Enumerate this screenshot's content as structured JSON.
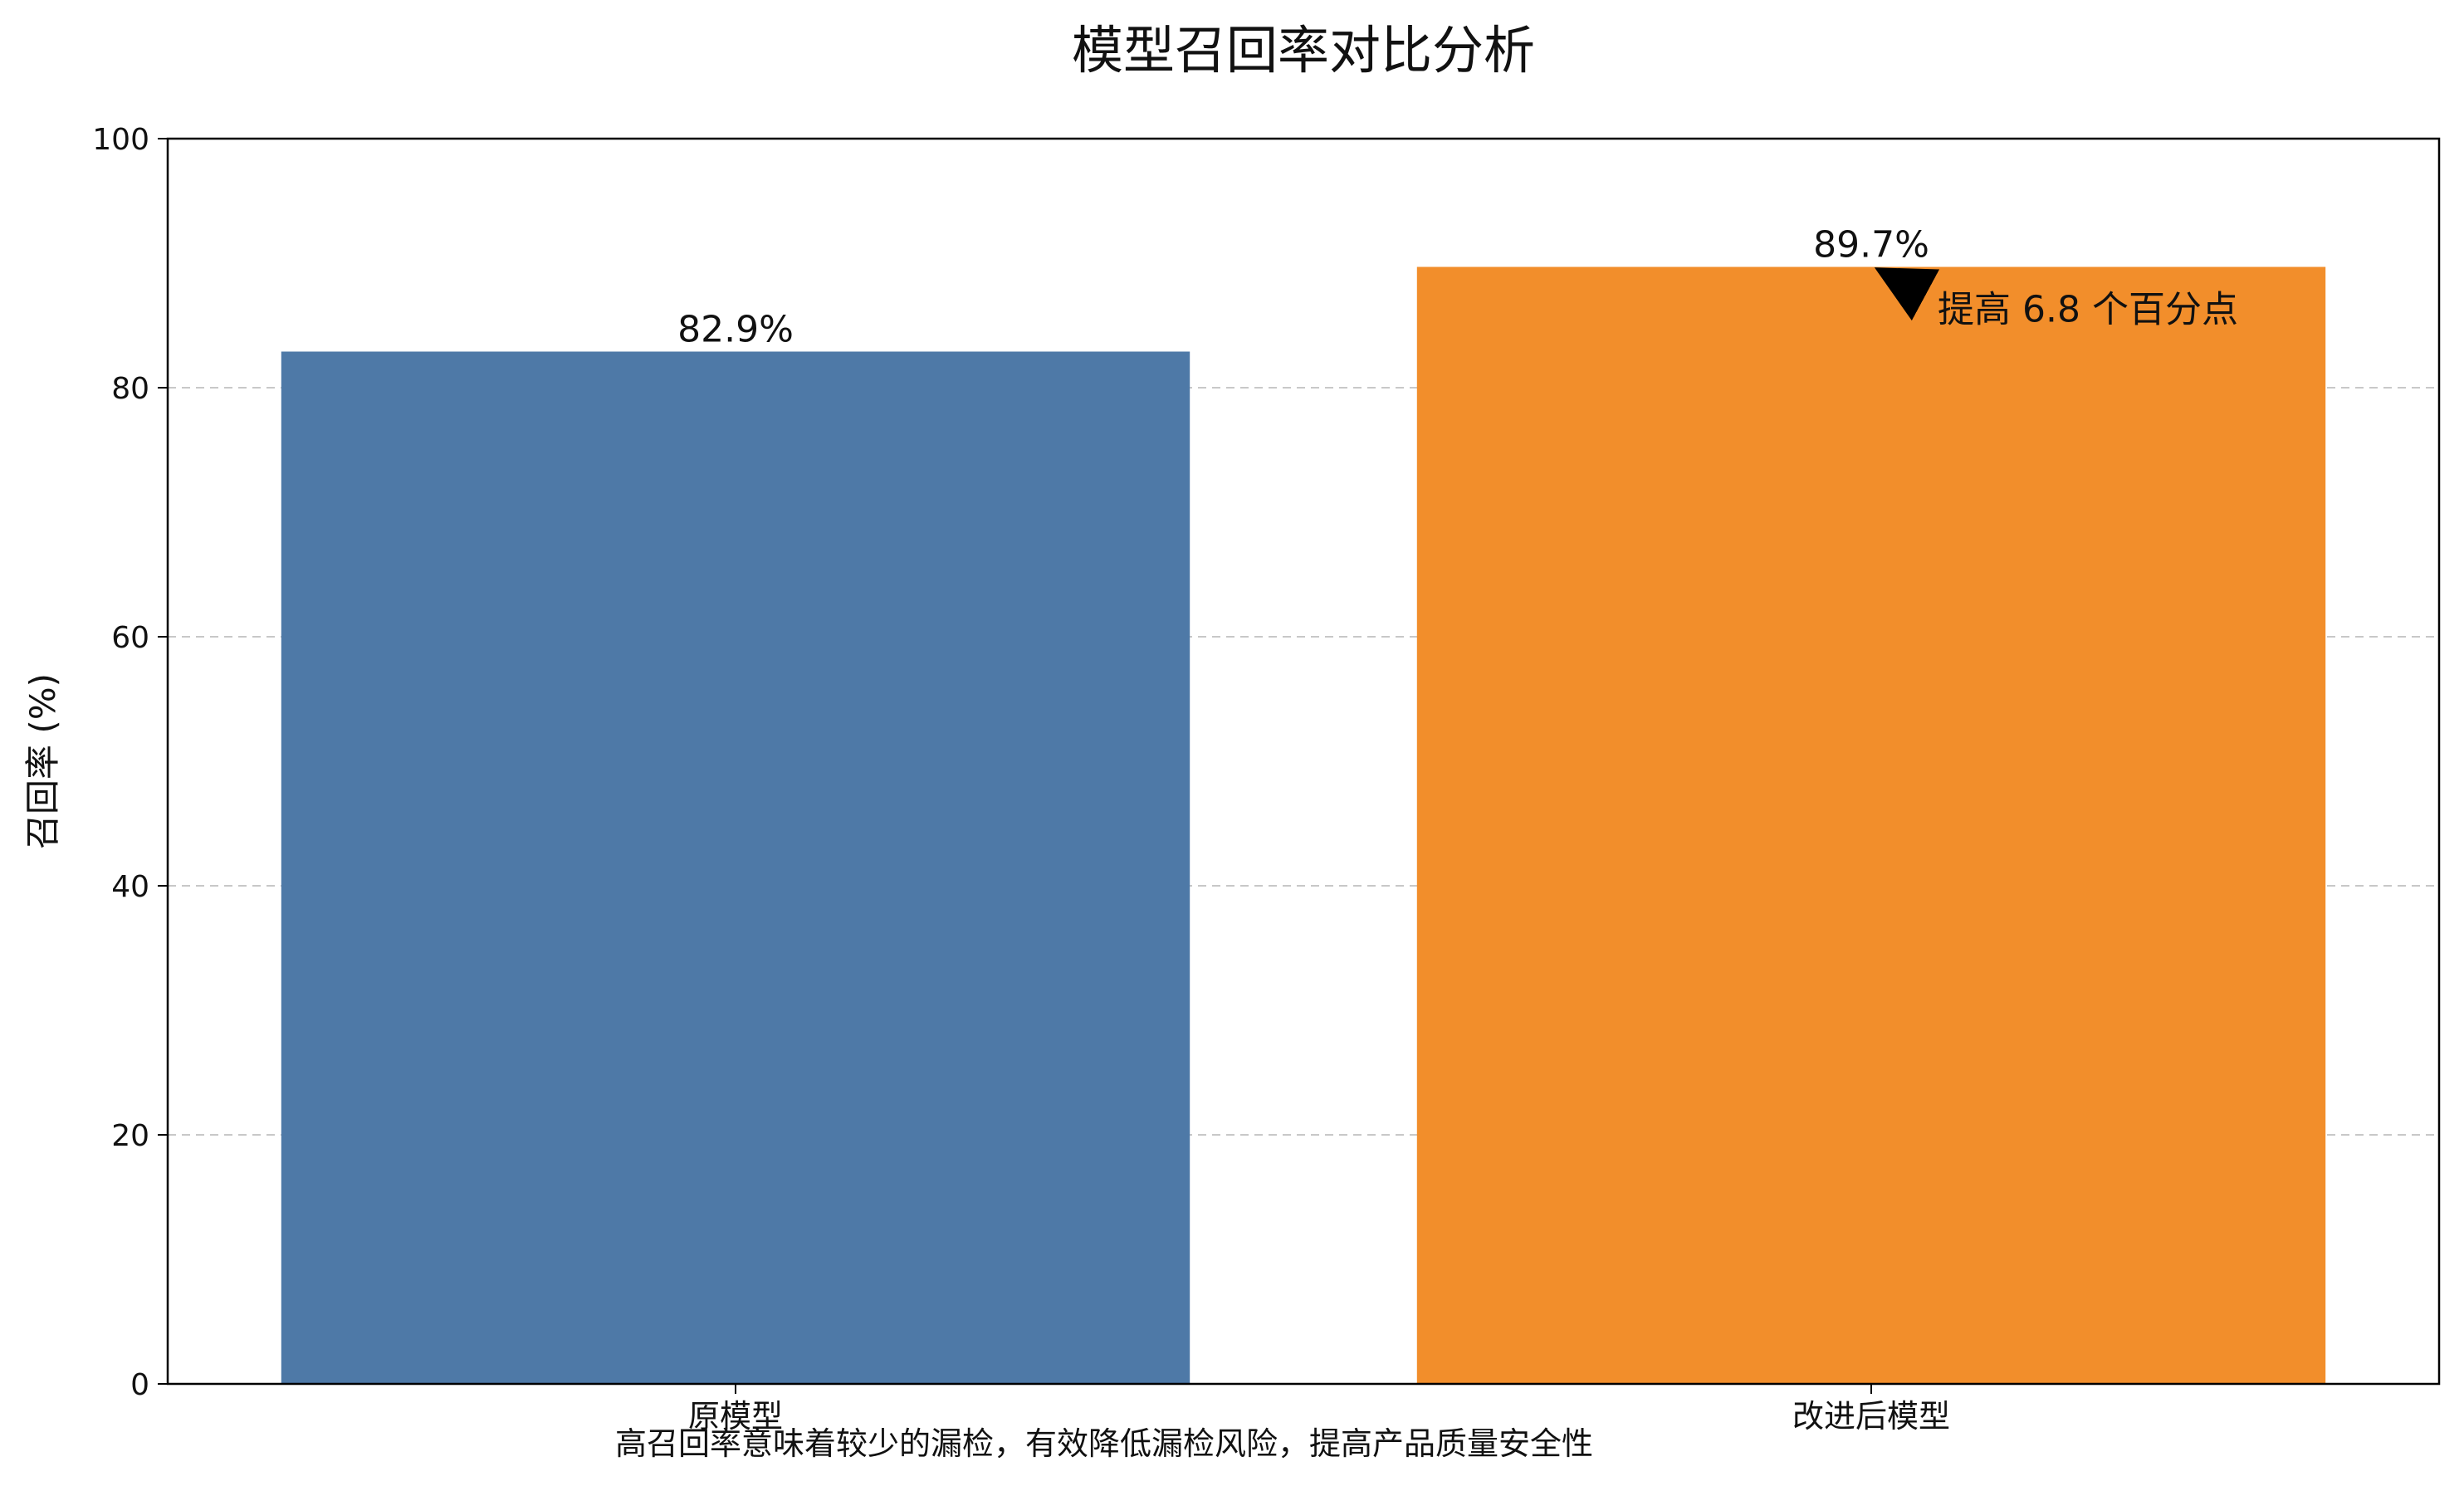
{
  "chart_data": {
    "type": "bar",
    "title": "模型召回率对比分析",
    "ylabel": "召回率 (%)",
    "xlabel": "",
    "categories": [
      "原模型",
      "改进后模型"
    ],
    "values": [
      82.9,
      89.7
    ],
    "value_labels": [
      "82.9%",
      "89.7%"
    ],
    "colors": [
      "#4e79a7",
      "#f28e2b"
    ],
    "ylim": [
      0,
      100
    ],
    "yticks": [
      0,
      20,
      40,
      60,
      80,
      100
    ],
    "grid": "y-dashed",
    "annotation": {
      "text": "提高 6.8 个百分点",
      "points_to_category": "改进后模型",
      "points_to_value": 89.7
    },
    "footnote": "高召回率意味着较少的漏检，有效降低漏检风险，提高产品质量安全性"
  }
}
